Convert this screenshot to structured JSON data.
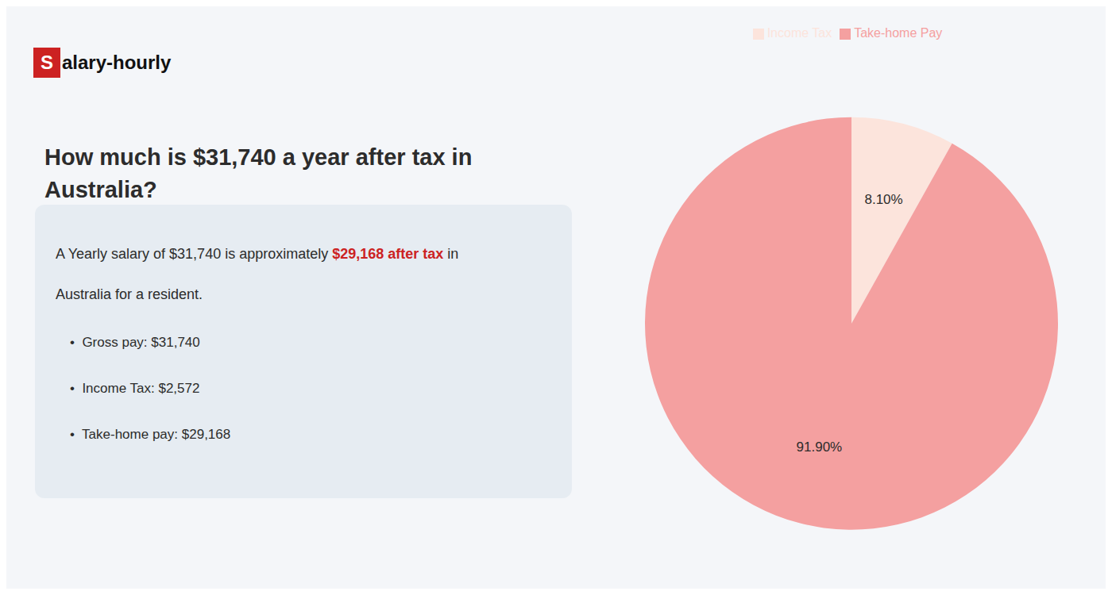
{
  "chart_data": {
    "type": "pie",
    "title": "How much is $31,740 a year after tax in\nAustralia?",
    "categories": [
      "Income Tax",
      "Take-home Pay"
    ],
    "values": [
      8.1,
      91.9
    ],
    "value_labels": [
      "8.10%",
      "91.90%"
    ],
    "colors": [
      "#fce4dc",
      "#f4a0a0"
    ],
    "data_labels": true,
    "legend": "top",
    "annotations": [
      {
        "text": "S",
        "color": "#cc2222"
      },
      {
        "text": "alary-hourly"
      },
      {
        "text": "A Yearly salary of $31,740 is approximately "
      },
      {
        "text": "$29,168 after tax",
        "color": "#cc2222"
      },
      {
        "text": " in"
      },
      {
        "text": "Australia for a resident."
      },
      {
        "text": "•  Gross pay: $31,740"
      },
      {
        "text": "•  Income Tax: $2,572"
      },
      {
        "text": "•  Take-home pay: $29,168"
      }
    ]
  }
}
